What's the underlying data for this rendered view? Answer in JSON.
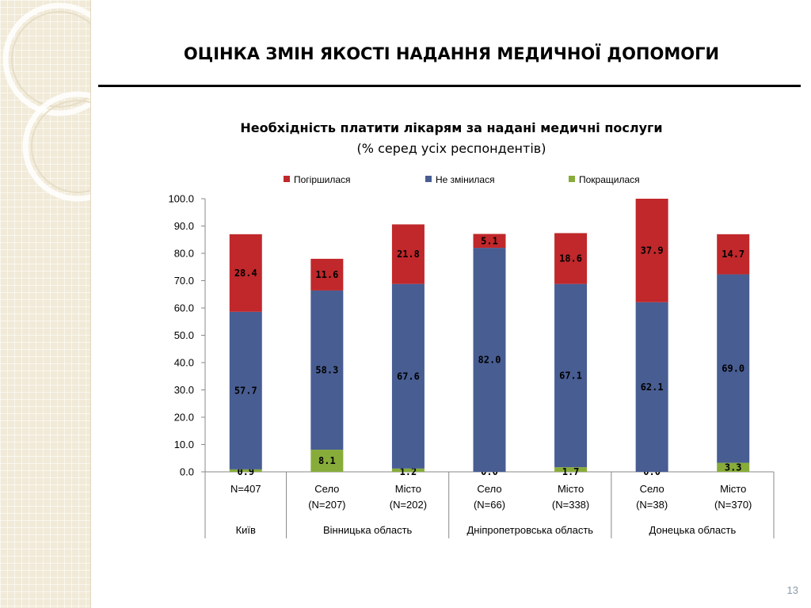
{
  "slide": {
    "title": "ОЦІНКА ЗМІН ЯКОСТІ НАДАННЯ МЕДИЧНОЇ ДОПОМОГИ",
    "number": "13"
  },
  "colors": {
    "worse": "#c0282b",
    "same": "#485d92",
    "better": "#87ac3a"
  },
  "chart_data": {
    "type": "bar",
    "stacked": true,
    "title": "Необхідність платити лікарям за надані медичні послуги",
    "subtitle": "(% серед усіх респондентів)",
    "ylim": [
      0,
      100
    ],
    "yticks": [
      "0.0",
      "10.0",
      "20.0",
      "30.0",
      "40.0",
      "50.0",
      "60.0",
      "70.0",
      "80.0",
      "90.0",
      "100.0"
    ],
    "legend_position": "top",
    "categories": [
      [
        "N=407",
        ""
      ],
      [
        "Село",
        "(N=207)"
      ],
      [
        "Місто",
        "(N=202)"
      ],
      [
        "Село",
        "(N=66)"
      ],
      [
        "Місто",
        "(N=338)"
      ],
      [
        "Село",
        "(N=38)"
      ],
      [
        "Місто",
        "(N=370)"
      ]
    ],
    "groups": [
      {
        "label": "Київ",
        "span": 1
      },
      {
        "label": "Вінницька область",
        "span": 2
      },
      {
        "label": "Дніпропетровська область",
        "span": 2
      },
      {
        "label": "Донецька область",
        "span": 2
      }
    ],
    "series": [
      {
        "name": "Покращилася",
        "color_key": "better",
        "values": [
          0.9,
          8.1,
          1.2,
          0.0,
          1.7,
          0.0,
          3.3
        ],
        "labels": [
          "0.9",
          "8.1",
          "1.2",
          "0.0",
          "1.7",
          "0.0",
          "3.3"
        ]
      },
      {
        "name": "Не змінилася",
        "color_key": "same",
        "values": [
          57.7,
          58.3,
          67.6,
          82.0,
          67.1,
          62.1,
          69.0
        ],
        "labels": [
          "57.7",
          "58.3",
          "67.6",
          "82.0",
          "67.1",
          "62.1",
          "69.0"
        ]
      },
      {
        "name": "Погіршилася",
        "color_key": "worse",
        "values": [
          28.4,
          11.6,
          21.8,
          5.1,
          18.6,
          37.9,
          14.7
        ],
        "labels": [
          "28.4",
          "11.6",
          "21.8",
          "5.1",
          "18.6",
          "37.9",
          "14.7"
        ]
      }
    ],
    "legend_order": [
      "Погіршилася",
      "Не змінилася",
      "Покращилася"
    ]
  }
}
